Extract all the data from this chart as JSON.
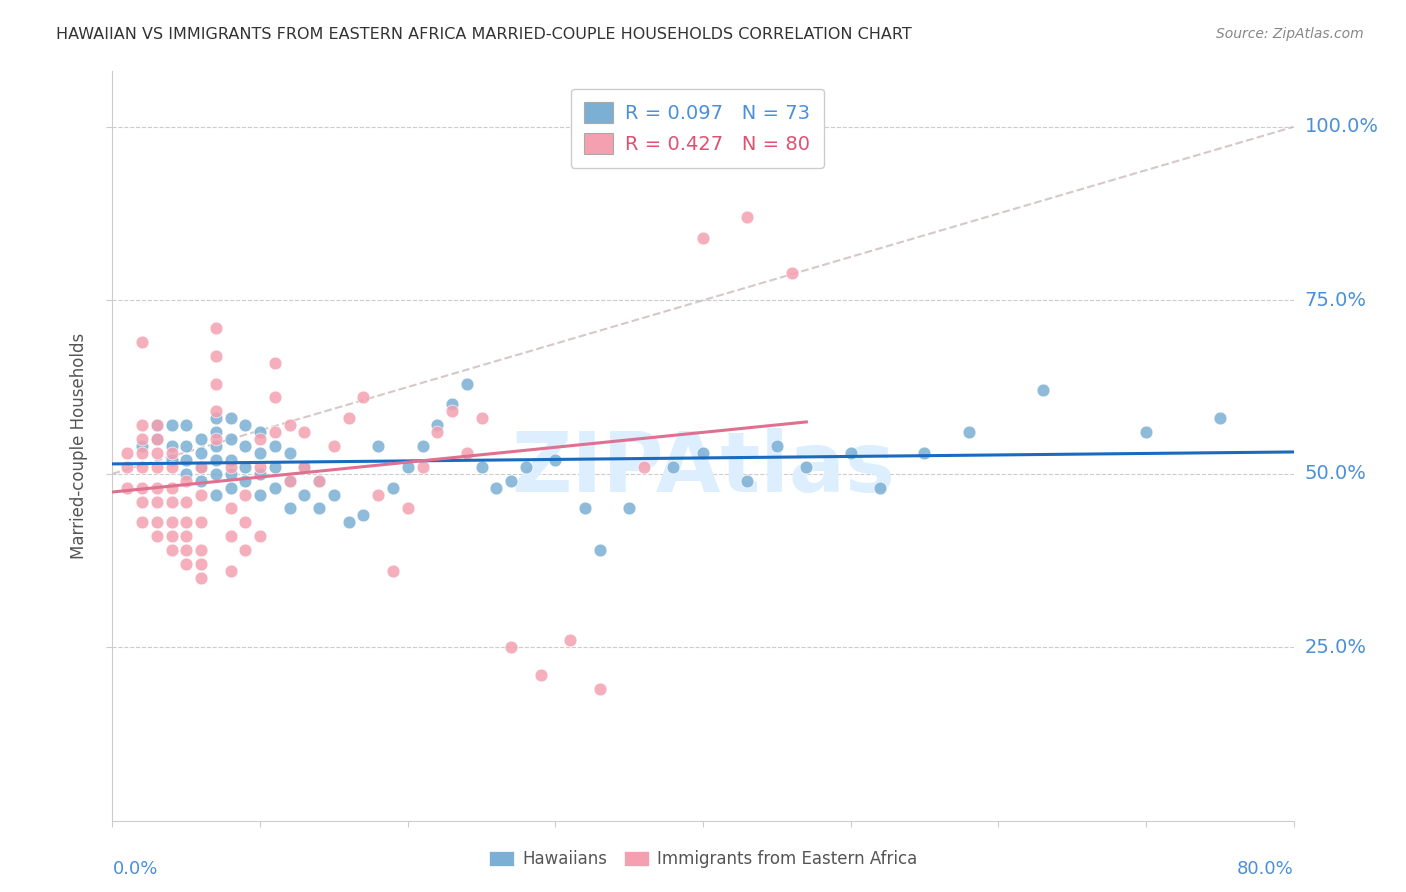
{
  "title": "HAWAIIAN VS IMMIGRANTS FROM EASTERN AFRICA MARRIED-COUPLE HOUSEHOLDS CORRELATION CHART",
  "source": "Source: ZipAtlas.com",
  "ylabel": "Married-couple Households",
  "xlim": [
    0.0,
    0.8
  ],
  "ylim": [
    0.0,
    1.08
  ],
  "legend_entries": [
    {
      "label": "R = 0.097",
      "N": "N = 73",
      "color": "#7bafd4"
    },
    {
      "label": "R = 0.427",
      "N": "N = 80",
      "color": "#f4a0b0"
    }
  ],
  "hawaii_color": "#7bafd4",
  "eastafrica_color": "#f4a0b0",
  "trendline_hawaii_color": "#1a6bbf",
  "trendline_eastafrica_color": "#e07090",
  "reference_line_color": "#ccbbbb",
  "grid_color": "#cccccc",
  "title_color": "#333333",
  "axis_label_color": "#4a90d9",
  "background_color": "#ffffff",
  "watermark_text": "ZIPAtlas",
  "watermark_color": "#ddeeff",
  "watermark_fontsize": 60,
  "hawaii_x": [
    0.02,
    0.03,
    0.03,
    0.04,
    0.04,
    0.04,
    0.05,
    0.05,
    0.05,
    0.05,
    0.06,
    0.06,
    0.06,
    0.06,
    0.07,
    0.07,
    0.07,
    0.07,
    0.07,
    0.07,
    0.08,
    0.08,
    0.08,
    0.08,
    0.08,
    0.09,
    0.09,
    0.09,
    0.09,
    0.1,
    0.1,
    0.1,
    0.1,
    0.11,
    0.11,
    0.11,
    0.12,
    0.12,
    0.12,
    0.13,
    0.13,
    0.14,
    0.14,
    0.15,
    0.16,
    0.17,
    0.18,
    0.19,
    0.2,
    0.21,
    0.22,
    0.23,
    0.24,
    0.25,
    0.26,
    0.27,
    0.28,
    0.3,
    0.32,
    0.33,
    0.35,
    0.38,
    0.4,
    0.43,
    0.45,
    0.47,
    0.5,
    0.52,
    0.55,
    0.58,
    0.63,
    0.7,
    0.75
  ],
  "hawaii_y": [
    0.54,
    0.55,
    0.57,
    0.52,
    0.54,
    0.57,
    0.5,
    0.52,
    0.54,
    0.57,
    0.49,
    0.51,
    0.53,
    0.55,
    0.47,
    0.5,
    0.52,
    0.54,
    0.56,
    0.58,
    0.48,
    0.5,
    0.52,
    0.55,
    0.58,
    0.49,
    0.51,
    0.54,
    0.57,
    0.47,
    0.5,
    0.53,
    0.56,
    0.48,
    0.51,
    0.54,
    0.45,
    0.49,
    0.53,
    0.47,
    0.51,
    0.45,
    0.49,
    0.47,
    0.43,
    0.44,
    0.54,
    0.48,
    0.51,
    0.54,
    0.57,
    0.6,
    0.63,
    0.51,
    0.48,
    0.49,
    0.51,
    0.52,
    0.45,
    0.39,
    0.45,
    0.51,
    0.53,
    0.49,
    0.54,
    0.51,
    0.53,
    0.48,
    0.53,
    0.56,
    0.62,
    0.56,
    0.58
  ],
  "eastafrica_x": [
    0.01,
    0.01,
    0.01,
    0.02,
    0.02,
    0.02,
    0.02,
    0.02,
    0.02,
    0.02,
    0.02,
    0.03,
    0.03,
    0.03,
    0.03,
    0.03,
    0.03,
    0.03,
    0.03,
    0.04,
    0.04,
    0.04,
    0.04,
    0.04,
    0.04,
    0.04,
    0.05,
    0.05,
    0.05,
    0.05,
    0.05,
    0.05,
    0.06,
    0.06,
    0.06,
    0.06,
    0.06,
    0.06,
    0.07,
    0.07,
    0.07,
    0.07,
    0.07,
    0.08,
    0.08,
    0.08,
    0.08,
    0.09,
    0.09,
    0.09,
    0.1,
    0.1,
    0.1,
    0.11,
    0.11,
    0.11,
    0.12,
    0.12,
    0.13,
    0.13,
    0.14,
    0.15,
    0.16,
    0.17,
    0.18,
    0.19,
    0.2,
    0.21,
    0.22,
    0.23,
    0.24,
    0.25,
    0.27,
    0.29,
    0.31,
    0.33,
    0.36,
    0.4,
    0.43,
    0.46
  ],
  "eastafrica_y": [
    0.48,
    0.51,
    0.53,
    0.43,
    0.46,
    0.48,
    0.51,
    0.53,
    0.55,
    0.57,
    0.69,
    0.41,
    0.43,
    0.46,
    0.48,
    0.51,
    0.53,
    0.55,
    0.57,
    0.39,
    0.41,
    0.43,
    0.46,
    0.48,
    0.51,
    0.53,
    0.37,
    0.39,
    0.41,
    0.43,
    0.46,
    0.49,
    0.35,
    0.37,
    0.39,
    0.43,
    0.47,
    0.51,
    0.55,
    0.59,
    0.63,
    0.67,
    0.71,
    0.51,
    0.36,
    0.41,
    0.45,
    0.39,
    0.43,
    0.47,
    0.41,
    0.51,
    0.55,
    0.56,
    0.61,
    0.66,
    0.49,
    0.57,
    0.51,
    0.56,
    0.49,
    0.54,
    0.58,
    0.61,
    0.47,
    0.36,
    0.45,
    0.51,
    0.56,
    0.59,
    0.53,
    0.58,
    0.25,
    0.21,
    0.26,
    0.19,
    0.51,
    0.84,
    0.87,
    0.79
  ],
  "ytick_labels": [
    "100.0%",
    "75.0%",
    "50.0%",
    "25.0%"
  ],
  "ytick_values": [
    1.0,
    0.75,
    0.5,
    0.25
  ]
}
